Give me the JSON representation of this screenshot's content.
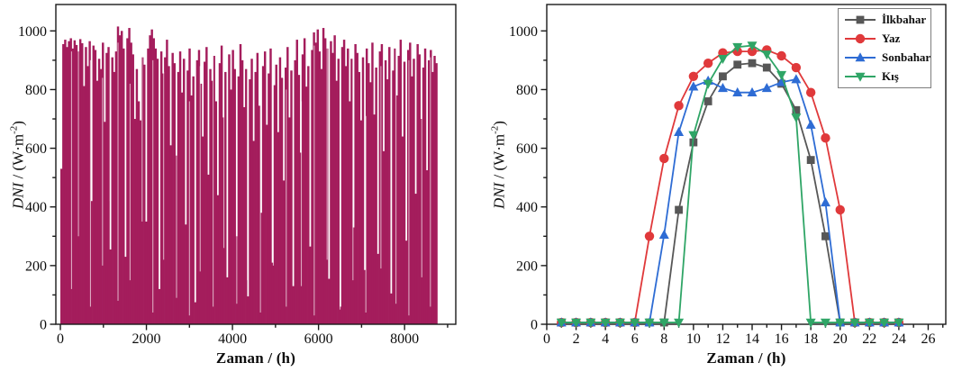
{
  "chart_data": [
    {
      "id": "annual",
      "type": "area",
      "title": "",
      "xlabel": "Zaman / (h)",
      "ylabel": "DNI / (W·m-2)",
      "ylabel_parts": {
        "italic": "DNI",
        "mid": " / (W·m",
        "sup": "-2",
        "end": ")"
      },
      "xlim": [
        -105,
        9190
      ],
      "ylim": [
        0,
        1090
      ],
      "x_major_ticks": [
        0,
        2000,
        4000,
        6000,
        8000
      ],
      "x_minor_ticks": [
        1000,
        3000,
        5000,
        7000,
        9000
      ],
      "y_major_ticks": [
        0,
        200,
        400,
        600,
        800,
        1000
      ],
      "y_minor_ticks": [
        100,
        300,
        500,
        700,
        900
      ],
      "fill_color": "#a41d5c",
      "streak_color": "rgba(255,255,255,0.62)",
      "hours_total": 8760,
      "sample_step_h": 43.8,
      "values": [
        530,
        955,
        970,
        945,
        965,
        975,
        940,
        968,
        952,
        930,
        972,
        958,
        812,
        945,
        880,
        965,
        420,
        950,
        935,
        830,
        905,
        870,
        960,
        690,
        925,
        945,
        255,
        910,
        860,
        930,
        1015,
        985,
        1000,
        940,
        230,
        975,
        1010,
        960,
        920,
        700,
        870,
        760,
        695,
        910,
        885,
        350,
        940,
        985,
        1005,
        975,
        940,
        905,
        120,
        930,
        855,
        910,
        970,
        880,
        610,
        925,
        890,
        575,
        860,
        930,
        790,
        905,
        340,
        865,
        940,
        780,
        845,
        75,
        900,
        935,
        820,
        640,
        895,
        945,
        510,
        870,
        830,
        915,
        760,
        440,
        890,
        950,
        705,
        860,
        160,
        920,
        800,
        935,
        870,
        300,
        845,
        955,
        900,
        740,
        870,
        95,
        835,
        905,
        625,
        860,
        925,
        745,
        380,
        880,
        930,
        680,
        855,
        940,
        210,
        815,
        885,
        655,
        910,
        840,
        490,
        875,
        945,
        705,
        865,
        130,
        900,
        970,
        850,
        585,
        920,
        975,
        810,
        880,
        265,
        935,
        995,
        960,
        1005,
        930,
        870,
        1010,
        975,
        940,
        155,
        965,
        925,
        985,
        830,
        905,
        60,
        945,
        970,
        880,
        940,
        760,
        905,
        330,
        955,
        925,
        860,
        695,
        910,
        185,
        940,
        890,
        825,
        960,
        715,
        875,
        240,
        930,
        955,
        590,
        900,
        835,
        945,
        105,
        865,
        940,
        780,
        915,
        970,
        640,
        895,
        285,
        935,
        960,
        845,
        905,
        445,
        955,
        920,
        700,
        875,
        940,
        525,
        900,
        935,
        860,
        915,
        890
      ],
      "light_streaks": [
        [
          260,
          930,
          120
        ],
        [
          420,
          950,
          300
        ],
        [
          700,
          900,
          60
        ],
        [
          980,
          840,
          200
        ],
        [
          1160,
          990,
          420
        ],
        [
          1340,
          960,
          80
        ],
        [
          1620,
          820,
          150
        ],
        [
          1900,
          970,
          350
        ],
        [
          2150,
          900,
          40
        ],
        [
          2400,
          860,
          220
        ],
        [
          2700,
          790,
          90
        ],
        [
          3000,
          760,
          30
        ],
        [
          3250,
          880,
          180
        ],
        [
          3550,
          930,
          60
        ],
        [
          3800,
          940,
          260
        ],
        [
          4100,
          620,
          70
        ],
        [
          4350,
          910,
          150
        ],
        [
          4650,
          970,
          40
        ],
        [
          4950,
          850,
          200
        ],
        [
          5250,
          800,
          60
        ],
        [
          5600,
          760,
          130
        ],
        [
          5900,
          950,
          30
        ],
        [
          6200,
          980,
          220
        ],
        [
          6500,
          940,
          50
        ],
        [
          6800,
          930,
          150
        ],
        [
          7100,
          710,
          40
        ],
        [
          7450,
          880,
          190
        ],
        [
          7800,
          960,
          70
        ],
        [
          8100,
          900,
          30
        ],
        [
          8400,
          930,
          160
        ],
        [
          8600,
          910,
          60
        ]
      ]
    },
    {
      "id": "seasonal",
      "type": "line",
      "title": "",
      "xlabel": "Zaman / (h)",
      "ylabel": "DNI / (W·m-2)",
      "ylabel_parts": {
        "italic": "DNI",
        "mid": " / (W·m",
        "sup": "-2",
        "end": ")"
      },
      "xlim": [
        0,
        27.2
      ],
      "ylim": [
        0,
        1090
      ],
      "x_major_ticks": [
        0,
        2,
        4,
        6,
        8,
        10,
        12,
        14,
        16,
        18,
        20,
        22,
        24,
        26
      ],
      "x_minor_ticks": [
        1,
        3,
        5,
        7,
        9,
        11,
        13,
        15,
        17,
        19,
        21,
        23,
        25,
        27
      ],
      "y_major_ticks": [
        0,
        200,
        400,
        600,
        800,
        1000
      ],
      "y_minor_ticks": [
        100,
        300,
        500,
        700,
        900
      ],
      "x": [
        1,
        2,
        3,
        4,
        5,
        6,
        7,
        8,
        9,
        10,
        11,
        12,
        13,
        14,
        15,
        16,
        17,
        18,
        19,
        20,
        21,
        22,
        23,
        24
      ],
      "series": [
        {
          "id": "ilkbahar",
          "name": "İlkbahar",
          "marker": "square",
          "color": "#575757",
          "values": [
            6,
            6,
            6,
            6,
            6,
            6,
            6,
            6,
            390,
            620,
            760,
            845,
            885,
            890,
            875,
            820,
            730,
            560,
            300,
            6,
            6,
            6,
            6,
            6
          ]
        },
        {
          "id": "yaz",
          "name": "Yaz",
          "marker": "circle",
          "color": "#e0393b",
          "values": [
            6,
            6,
            6,
            6,
            6,
            6,
            300,
            565,
            745,
            845,
            890,
            925,
            930,
            930,
            935,
            915,
            875,
            790,
            635,
            390,
            6,
            6,
            6,
            6
          ]
        },
        {
          "id": "sonbahar",
          "name": "Sonbahar",
          "marker": "triangle-up",
          "color": "#2e6cd4",
          "values": [
            6,
            6,
            6,
            6,
            6,
            6,
            6,
            305,
            655,
            810,
            830,
            805,
            790,
            790,
            805,
            825,
            835,
            680,
            415,
            6,
            6,
            6,
            6,
            6
          ]
        },
        {
          "id": "kis",
          "name": "Kış",
          "marker": "triangle-down",
          "color": "#2fa566",
          "values": [
            6,
            6,
            6,
            6,
            6,
            6,
            6,
            6,
            6,
            645,
            820,
            905,
            945,
            950,
            920,
            850,
            705,
            6,
            6,
            6,
            6,
            6,
            6,
            6
          ]
        }
      ],
      "legend": {
        "position": "top-right",
        "border_color": "#7d7d7d"
      }
    }
  ]
}
